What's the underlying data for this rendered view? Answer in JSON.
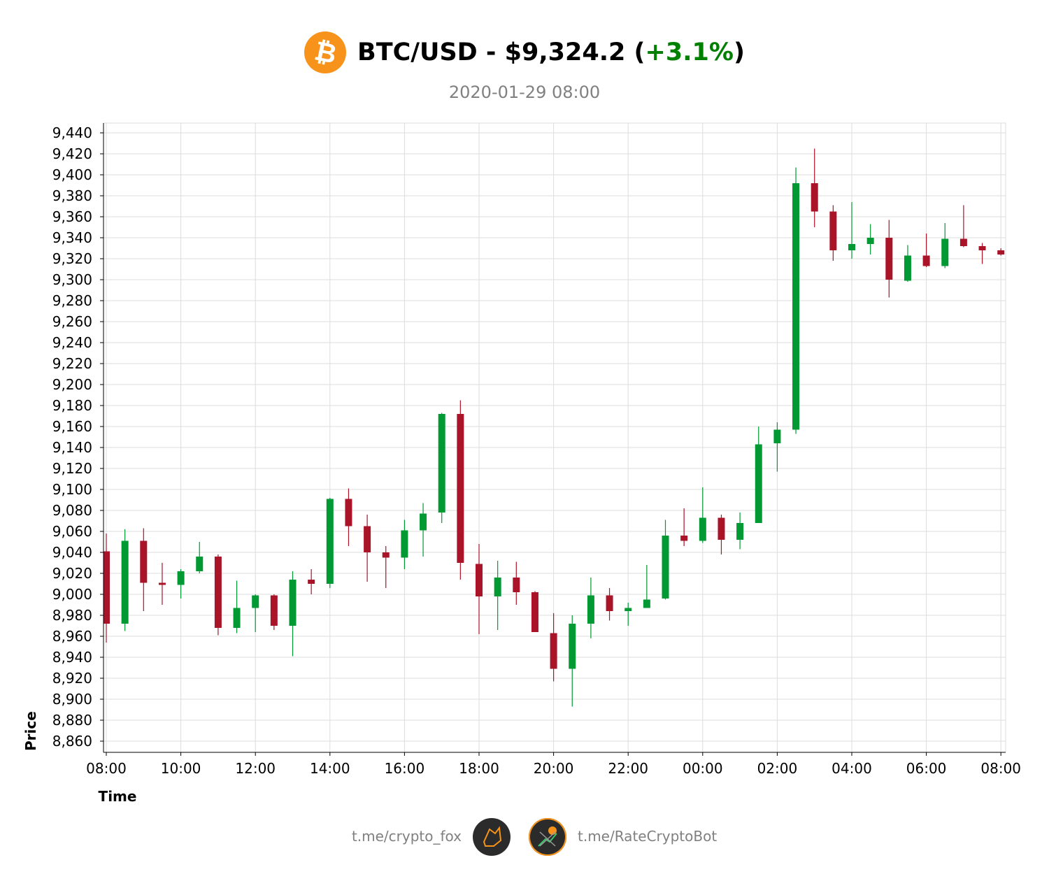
{
  "header": {
    "pair": "BTC/USD",
    "separator": " - ",
    "price": "$9,324.2",
    "open_paren": " (",
    "change": "+3.1%",
    "close_paren": ")",
    "timestamp": "2020-01-29 08:00",
    "logo_icon": "bitcoin-logo-icon"
  },
  "footer": {
    "left_link": "t.me/crypto_fox",
    "right_link": "t.me/RateCryptoBot",
    "left_icon": "fox-avatar-icon",
    "right_icon": "bot-avatar-icon"
  },
  "colors": {
    "up": "#009933",
    "down": "#aa1428",
    "change_text": "#008000",
    "bitcoin_orange": "#f7931a",
    "grid": "#dddddd"
  },
  "chart_data": {
    "type": "candlestick",
    "xlabel": "Time",
    "ylabel": "Price",
    "x_ticks": [
      "08:00",
      "10:00",
      "12:00",
      "14:00",
      "16:00",
      "18:00",
      "20:00",
      "22:00",
      "00:00",
      "02:00",
      "04:00",
      "06:00",
      "08:00"
    ],
    "y_ticks": [
      8860,
      8880,
      8900,
      8920,
      8940,
      8960,
      8980,
      9000,
      9020,
      9040,
      9060,
      9080,
      9100,
      9120,
      9140,
      9160,
      9180,
      9200,
      9220,
      9240,
      9260,
      9280,
      9300,
      9320,
      9340,
      9360,
      9380,
      9400,
      9420,
      9440
    ],
    "ylim": [
      8850,
      9448
    ],
    "grid": true,
    "interval": "30m",
    "candles": [
      {
        "time": "08:00",
        "open": 9041,
        "high": 9058,
        "low": 8954,
        "close": 8972
      },
      {
        "time": "08:30",
        "open": 8972,
        "high": 9062,
        "low": 8965,
        "close": 9051
      },
      {
        "time": "09:00",
        "open": 9051,
        "high": 9063,
        "low": 8984,
        "close": 9011
      },
      {
        "time": "09:30",
        "open": 9011,
        "high": 9030,
        "low": 8990,
        "close": 9009
      },
      {
        "time": "10:00",
        "open": 9009,
        "high": 9024,
        "low": 8996,
        "close": 9022
      },
      {
        "time": "10:30",
        "open": 9022,
        "high": 9050,
        "low": 9020,
        "close": 9036
      },
      {
        "time": "11:00",
        "open": 9036,
        "high": 9038,
        "low": 8961,
        "close": 8968
      },
      {
        "time": "11:30",
        "open": 8968,
        "high": 9013,
        "low": 8963,
        "close": 8987
      },
      {
        "time": "12:00",
        "open": 8987,
        "high": 9000,
        "low": 8964,
        "close": 8999
      },
      {
        "time": "12:30",
        "open": 8999,
        "high": 9000,
        "low": 8966,
        "close": 8970
      },
      {
        "time": "13:00",
        "open": 8970,
        "high": 9022,
        "low": 8941,
        "close": 9014
      },
      {
        "time": "13:30",
        "open": 9014,
        "high": 9024,
        "low": 9000,
        "close": 9010
      },
      {
        "time": "14:00",
        "open": 9010,
        "high": 9092,
        "low": 9006,
        "close": 9091
      },
      {
        "time": "14:30",
        "open": 9091,
        "high": 9101,
        "low": 9046,
        "close": 9065
      },
      {
        "time": "15:00",
        "open": 9065,
        "high": 9076,
        "low": 9012,
        "close": 9040
      },
      {
        "time": "15:30",
        "open": 9040,
        "high": 9046,
        "low": 9006,
        "close": 9035
      },
      {
        "time": "16:00",
        "open": 9035,
        "high": 9071,
        "low": 9024,
        "close": 9061
      },
      {
        "time": "16:30",
        "open": 9061,
        "high": 9087,
        "low": 9036,
        "close": 9077
      },
      {
        "time": "17:00",
        "open": 9078,
        "high": 9173,
        "low": 9068,
        "close": 9172
      },
      {
        "time": "17:30",
        "open": 9172,
        "high": 9185,
        "low": 9014,
        "close": 9030
      },
      {
        "time": "18:00",
        "open": 9029,
        "high": 9048,
        "low": 8962,
        "close": 8998
      },
      {
        "time": "18:30",
        "open": 8998,
        "high": 9032,
        "low": 8966,
        "close": 9016
      },
      {
        "time": "19:00",
        "open": 9016,
        "high": 9031,
        "low": 8990,
        "close": 9002
      },
      {
        "time": "19:30",
        "open": 9002,
        "high": 9003,
        "low": 8964,
        "close": 8964
      },
      {
        "time": "20:00",
        "open": 8963,
        "high": 8982,
        "low": 8917,
        "close": 8929
      },
      {
        "time": "20:30",
        "open": 8929,
        "high": 8980,
        "low": 8893,
        "close": 8972
      },
      {
        "time": "21:00",
        "open": 8972,
        "high": 9016,
        "low": 8958,
        "close": 8999
      },
      {
        "time": "21:30",
        "open": 8999,
        "high": 9006,
        "low": 8975,
        "close": 8984
      },
      {
        "time": "22:00",
        "open": 8984,
        "high": 8992,
        "low": 8970,
        "close": 8987
      },
      {
        "time": "22:30",
        "open": 8987,
        "high": 9028,
        "low": 8987,
        "close": 8995
      },
      {
        "time": "23:00",
        "open": 8996,
        "high": 9071,
        "low": 8995,
        "close": 9056
      },
      {
        "time": "23:30",
        "open": 9056,
        "high": 9082,
        "low": 9046,
        "close": 9051
      },
      {
        "time": "00:00",
        "open": 9051,
        "high": 9102,
        "low": 9049,
        "close": 9073
      },
      {
        "time": "00:30",
        "open": 9073,
        "high": 9076,
        "low": 9038,
        "close": 9052
      },
      {
        "time": "01:00",
        "open": 9052,
        "high": 9078,
        "low": 9043,
        "close": 9068
      },
      {
        "time": "01:30",
        "open": 9068,
        "high": 9160,
        "low": 9068,
        "close": 9143
      },
      {
        "time": "02:00",
        "open": 9144,
        "high": 9164,
        "low": 9117,
        "close": 9157
      },
      {
        "time": "02:30",
        "open": 9157,
        "high": 9407,
        "low": 9153,
        "close": 9392
      },
      {
        "time": "03:00",
        "open": 9392,
        "high": 9425,
        "low": 9350,
        "close": 9365
      },
      {
        "time": "03:30",
        "open": 9365,
        "high": 9371,
        "low": 9318,
        "close": 9328
      },
      {
        "time": "04:00",
        "open": 9328,
        "high": 9374,
        "low": 9320,
        "close": 9334
      },
      {
        "time": "04:30",
        "open": 9334,
        "high": 9353,
        "low": 9324,
        "close": 9340
      },
      {
        "time": "05:00",
        "open": 9340,
        "high": 9357,
        "low": 9283,
        "close": 9300
      },
      {
        "time": "05:30",
        "open": 9299,
        "high": 9333,
        "low": 9298,
        "close": 9323
      },
      {
        "time": "06:00",
        "open": 9323,
        "high": 9344,
        "low": 9312,
        "close": 9313
      },
      {
        "time": "06:30",
        "open": 9313,
        "high": 9354,
        "low": 9311,
        "close": 9339
      },
      {
        "time": "07:00",
        "open": 9339,
        "high": 9371,
        "low": 9331,
        "close": 9332
      },
      {
        "time": "07:30",
        "open": 9332,
        "high": 9335,
        "low": 9315,
        "close": 9328
      },
      {
        "time": "08:00",
        "open": 9328,
        "high": 9330,
        "low": 9323,
        "close": 9324
      }
    ]
  }
}
